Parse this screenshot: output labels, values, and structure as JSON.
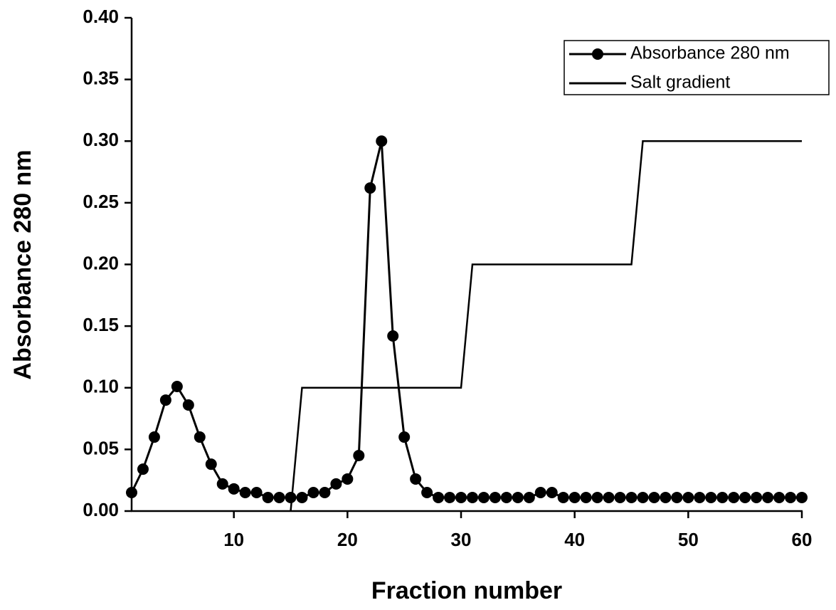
{
  "chart_data": {
    "type": "line",
    "xlabel": "Fraction number",
    "ylabel": "Absorbance 280 nm",
    "xlim": [
      1,
      60
    ],
    "xticks": [
      10,
      20,
      30,
      40,
      50,
      60
    ],
    "ylim": [
      0,
      0.4
    ],
    "yticks": [
      {
        "value": 0,
        "label": "0.00"
      },
      {
        "value": 0.05,
        "label": "0.05"
      },
      {
        "value": 0.1,
        "label": "0.10"
      },
      {
        "value": 0.15,
        "label": "0.15"
      },
      {
        "value": 0.2,
        "label": "0.20"
      },
      {
        "value": 0.25,
        "label": "0.25"
      },
      {
        "value": 0.3,
        "label": "0.30"
      },
      {
        "value": 0.35,
        "label": "0.35"
      },
      {
        "value": 0.4,
        "label": "0.40"
      }
    ],
    "legend": "upper right",
    "series": [
      {
        "name": "Absorbance 280 nm",
        "color": "#000000",
        "marker": "circle",
        "x": [
          1,
          2,
          3,
          4,
          5,
          6,
          7,
          8,
          9,
          10,
          11,
          12,
          13,
          14,
          15,
          16,
          17,
          18,
          19,
          20,
          21,
          22,
          23,
          24,
          25,
          26,
          27,
          28,
          29,
          30,
          31,
          32,
          33,
          34,
          35,
          36,
          37,
          38,
          39,
          40,
          41,
          42,
          43,
          44,
          45,
          46,
          47,
          48,
          49,
          50,
          51,
          52,
          53,
          54,
          55,
          56,
          57,
          58,
          59,
          60
        ],
        "values": [
          0.015,
          0.034,
          0.06,
          0.09,
          0.101,
          0.086,
          0.06,
          0.038,
          0.022,
          0.018,
          0.015,
          0.015,
          0.011,
          0.011,
          0.011,
          0.011,
          0.015,
          0.015,
          0.022,
          0.026,
          0.045,
          0.262,
          0.3,
          0.142,
          0.06,
          0.026,
          0.015,
          0.011,
          0.011,
          0.011,
          0.011,
          0.011,
          0.011,
          0.011,
          0.011,
          0.011,
          0.015,
          0.015,
          0.011,
          0.011,
          0.011,
          0.011,
          0.011,
          0.011,
          0.011,
          0.011,
          0.011,
          0.011,
          0.011,
          0.011,
          0.011,
          0.011,
          0.011,
          0.011,
          0.011,
          0.011,
          0.011,
          0.011,
          0.011,
          0.011
        ]
      },
      {
        "name": "Salt gradient",
        "color": "#000000",
        "x": [
          15,
          16,
          30,
          31,
          45,
          46,
          60
        ],
        "values": [
          0,
          0.1,
          0.1,
          0.2,
          0.2,
          0.3,
          0.3
        ]
      }
    ]
  }
}
